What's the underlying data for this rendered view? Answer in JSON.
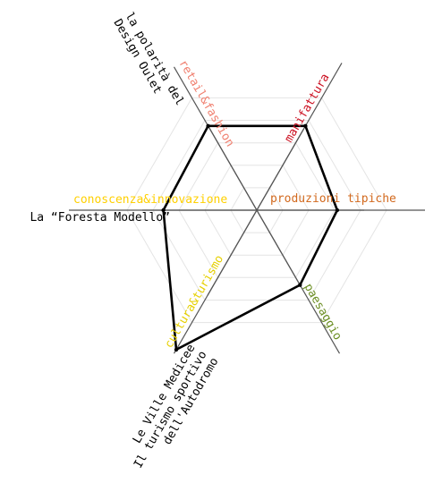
{
  "chart_data": {
    "type": "radar",
    "title": "",
    "grid": true,
    "axes": [
      {
        "key": "produzioni_tipiche",
        "label": "produzioni tipiche",
        "color": "#d2691e",
        "value": 0.62
      },
      {
        "key": "paesaggio",
        "label": "paesaggio",
        "color": "#6b8e23",
        "value": 0.68
      },
      {
        "key": "cultura_turismo",
        "label": "cultura&turismo",
        "color": "#e6d000",
        "value": 1.0
      },
      {
        "key": "conoscenza_innovazione",
        "label": "conoscenza&innovazione",
        "color": "#ffd000",
        "value": 0.72
      },
      {
        "key": "retail_fashion",
        "label": "retail&fashion",
        "color": "#f08070",
        "value": 0.75
      },
      {
        "key": "manifattura",
        "label": "manifattura",
        "color": "#cc1122",
        "value": 0.75
      }
    ],
    "outer_labels": [
      {
        "axis": "cultura_turismo",
        "lines": [
          "Le Ville Medicee",
          "Il turismo sportivo",
          "dell'Autodromo"
        ]
      },
      {
        "axis": "conoscenza_innovazione",
        "lines": [
          "La “Foresta Modello”"
        ]
      },
      {
        "axis": "retail_fashion",
        "lines": [
          "la polarità del",
          "Design Oulet"
        ]
      }
    ],
    "colors": {
      "polygon": "#000000",
      "grid": "#e4e4e4",
      "axis": "#555555"
    }
  }
}
